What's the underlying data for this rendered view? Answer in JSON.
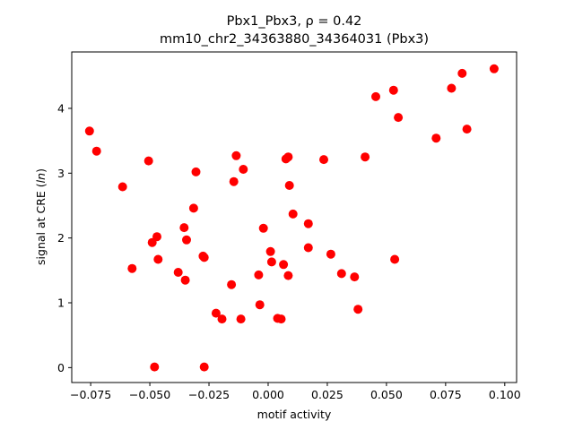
{
  "chart_data": {
    "type": "scatter",
    "title_line1": "Pbx1_Pbx3, ρ = 0.42",
    "title_line2": "mm10_chr2_34363880_34364031 (Pbx3)",
    "xlabel": "motif activity",
    "ylabel": "signal at CRE (ln)",
    "xlim": [
      -0.083,
      0.105
    ],
    "ylim": [
      -0.23,
      4.87
    ],
    "xticks": [
      -0.075,
      -0.05,
      -0.025,
      0.0,
      0.025,
      0.05,
      0.075,
      0.1
    ],
    "xtick_labels": [
      "−0.075",
      "−0.050",
      "−0.025",
      "0.000",
      "0.025",
      "0.050",
      "0.075",
      "0.100"
    ],
    "yticks": [
      0,
      1,
      2,
      3,
      4
    ],
    "ytick_labels": [
      "0",
      "1",
      "2",
      "3",
      "4"
    ],
    "marker_color": "#ff0000",
    "grid": false,
    "points": [
      {
        "x": -0.0755,
        "y": 3.65
      },
      {
        "x": -0.0725,
        "y": 3.34
      },
      {
        "x": -0.0615,
        "y": 2.79
      },
      {
        "x": -0.0505,
        "y": 3.19
      },
      {
        "x": -0.0575,
        "y": 1.53
      },
      {
        "x": -0.049,
        "y": 1.93
      },
      {
        "x": -0.047,
        "y": 2.02
      },
      {
        "x": -0.0465,
        "y": 1.67
      },
      {
        "x": -0.048,
        "y": 0.01
      },
      {
        "x": -0.038,
        "y": 1.47
      },
      {
        "x": -0.0355,
        "y": 2.16
      },
      {
        "x": -0.035,
        "y": 1.35
      },
      {
        "x": -0.0345,
        "y": 1.97
      },
      {
        "x": -0.0315,
        "y": 2.46
      },
      {
        "x": -0.0305,
        "y": 3.02
      },
      {
        "x": -0.0275,
        "y": 1.72
      },
      {
        "x": -0.027,
        "y": 1.7
      },
      {
        "x": -0.027,
        "y": 0.01
      },
      {
        "x": -0.022,
        "y": 0.84
      },
      {
        "x": -0.0195,
        "y": 0.75
      },
      {
        "x": -0.0155,
        "y": 1.28
      },
      {
        "x": -0.0145,
        "y": 2.87
      },
      {
        "x": -0.0135,
        "y": 3.27
      },
      {
        "x": -0.0115,
        "y": 0.75
      },
      {
        "x": -0.0105,
        "y": 3.06
      },
      {
        "x": -0.004,
        "y": 1.43
      },
      {
        "x": -0.0035,
        "y": 0.97
      },
      {
        "x": -0.002,
        "y": 2.15
      },
      {
        "x": 0.001,
        "y": 1.79
      },
      {
        "x": 0.0015,
        "y": 1.63
      },
      {
        "x": 0.004,
        "y": 0.76
      },
      {
        "x": 0.0055,
        "y": 0.75
      },
      {
        "x": 0.0065,
        "y": 1.59
      },
      {
        "x": 0.0075,
        "y": 3.22
      },
      {
        "x": 0.0085,
        "y": 3.25
      },
      {
        "x": 0.0085,
        "y": 1.42
      },
      {
        "x": 0.009,
        "y": 2.81
      },
      {
        "x": 0.0105,
        "y": 2.37
      },
      {
        "x": 0.017,
        "y": 2.22
      },
      {
        "x": 0.017,
        "y": 1.85
      },
      {
        "x": 0.0235,
        "y": 3.21
      },
      {
        "x": 0.0265,
        "y": 1.75
      },
      {
        "x": 0.031,
        "y": 1.45
      },
      {
        "x": 0.0365,
        "y": 1.4
      },
      {
        "x": 0.038,
        "y": 0.9
      },
      {
        "x": 0.041,
        "y": 3.25
      },
      {
        "x": 0.0455,
        "y": 4.18
      },
      {
        "x": 0.053,
        "y": 4.28
      },
      {
        "x": 0.0535,
        "y": 1.67
      },
      {
        "x": 0.055,
        "y": 3.86
      },
      {
        "x": 0.071,
        "y": 3.54
      },
      {
        "x": 0.0775,
        "y": 4.31
      },
      {
        "x": 0.082,
        "y": 4.54
      },
      {
        "x": 0.084,
        "y": 3.68
      },
      {
        "x": 0.0955,
        "y": 4.61
      }
    ]
  }
}
